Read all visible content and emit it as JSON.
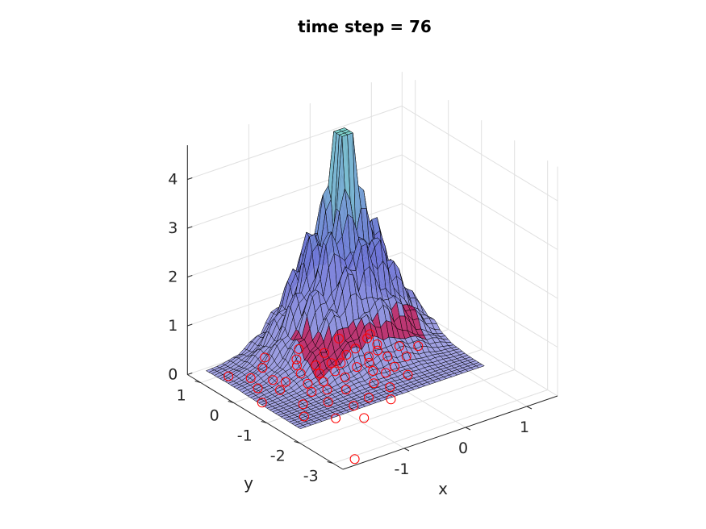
{
  "chart_data": {
    "type": "surface",
    "title": "time step = 76",
    "xlabel": "x",
    "ylabel": "y",
    "zlabel": "",
    "xlim": [
      -2,
      1.5
    ],
    "ylim": [
      -3.3,
      1.4
    ],
    "zlim": [
      0,
      4.7
    ],
    "x_ticks": [
      -1,
      0,
      1
    ],
    "y_ticks": [
      1,
      0,
      -1,
      -2,
      -3
    ],
    "z_ticks": [
      0,
      1,
      2,
      3,
      4
    ],
    "x_tick_labels": [
      "-1",
      "0",
      "1"
    ],
    "y_tick_labels": [
      "1",
      "0",
      "-1",
      "-2",
      "-3"
    ],
    "z_tick_labels": [
      "0",
      "1",
      "2",
      "3",
      "4"
    ],
    "grid": true,
    "surface": {
      "description_of_shape": "density surface with a peak near the origin",
      "peak": {
        "x": 0.1,
        "y": 0.6,
        "z": 4.4
      },
      "spread": {
        "x": 0.6,
        "y": 0.6
      }
    },
    "scatter": {
      "name": "",
      "marker": "circle",
      "color": "#ff0000",
      "points": [
        {
          "x": -1.7,
          "y": -3.1
        },
        {
          "x": 0.9,
          "y": -0.2
        },
        {
          "x": -0.9,
          "y": -1.9
        },
        {
          "x": -1.5,
          "y": -1.2
        },
        {
          "x": -1.3,
          "y": -0.8
        },
        {
          "x": -1.0,
          "y": -1.0
        },
        {
          "x": -0.8,
          "y": -0.6
        },
        {
          "x": -0.6,
          "y": -0.8
        },
        {
          "x": -0.4,
          "y": -0.4
        },
        {
          "x": -0.5,
          "y": -1.3
        },
        {
          "x": -0.2,
          "y": -0.9
        },
        {
          "x": 0.0,
          "y": -0.5
        },
        {
          "x": 0.1,
          "y": -0.2
        },
        {
          "x": 0.3,
          "y": -0.6
        },
        {
          "x": 0.4,
          "y": 0.1
        },
        {
          "x": 0.5,
          "y": 0.3
        },
        {
          "x": -0.3,
          "y": 0.2
        },
        {
          "x": -0.6,
          "y": 0.0
        },
        {
          "x": -0.9,
          "y": -0.2
        },
        {
          "x": -1.2,
          "y": 0.3
        },
        {
          "x": -1.4,
          "y": 0.6
        },
        {
          "x": -1.6,
          "y": 0.9
        },
        {
          "x": -1.1,
          "y": 0.8
        },
        {
          "x": -0.7,
          "y": 0.5
        },
        {
          "x": -0.2,
          "y": 0.6
        },
        {
          "x": 0.2,
          "y": 0.4
        },
        {
          "x": 0.6,
          "y": 0.7
        },
        {
          "x": 0.2,
          "y": 0.9
        },
        {
          "x": -0.4,
          "y": 1.0
        },
        {
          "x": -0.9,
          "y": 1.1
        },
        {
          "x": -1.3,
          "y": -0.1
        },
        {
          "x": -1.0,
          "y": -0.5
        },
        {
          "x": -0.7,
          "y": -0.3
        },
        {
          "x": -0.1,
          "y": -0.2
        },
        {
          "x": 0.2,
          "y": 0.0
        },
        {
          "x": -0.5,
          "y": 0.3
        },
        {
          "x": 0.7,
          "y": 0.0
        },
        {
          "x": 0.6,
          "y": -0.4
        },
        {
          "x": -0.3,
          "y": -1.6
        },
        {
          "x": -0.8,
          "y": -1.4
        },
        {
          "x": -1.2,
          "y": -1.6
        },
        {
          "x": -0.1,
          "y": -1.2
        },
        {
          "x": 0.3,
          "y": -1.0
        },
        {
          "x": 0.5,
          "y": 0.6
        },
        {
          "x": -0.2,
          "y": 0.1
        },
        {
          "x": -0.4,
          "y": -0.1
        },
        {
          "x": 0.0,
          "y": 0.3
        },
        {
          "x": -0.6,
          "y": 0.7
        },
        {
          "x": -1.1,
          "y": 0.1
        },
        {
          "x": -0.8,
          "y": 0.2
        },
        {
          "x": -1.5,
          "y": 0.2
        },
        {
          "x": -1.7,
          "y": -0.3
        },
        {
          "x": 0.1,
          "y": -0.7
        },
        {
          "x": 0.4,
          "y": -0.2
        }
      ]
    },
    "colors": {
      "surface_low": "#9a9ae0",
      "surface_mid": "#6f76d8",
      "surface_high": "#7fd6d0",
      "surface_under": "#b0145a",
      "mesh_line": "#000000",
      "grid_line": "#e0e0e0",
      "axis_line": "#262626"
    }
  }
}
